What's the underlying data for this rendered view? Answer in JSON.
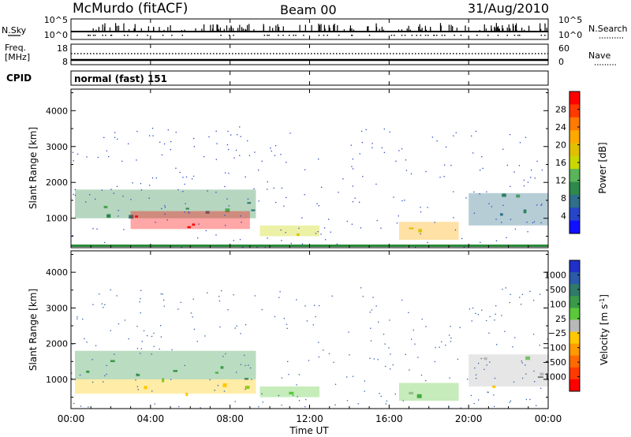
{
  "header": {
    "station": "McMurdo (fitACF)",
    "beam": "Beam 00",
    "date": "31/Aug/2010"
  },
  "noise_panel": {
    "left_label": "N.Sky",
    "right_label": "N.Search",
    "left_ticks": [
      "10^5",
      "10^0"
    ],
    "right_ticks": [
      "10^5",
      "10^0"
    ]
  },
  "freq_panel": {
    "label_line1": "Freq.",
    "label_line2": "[MHz]",
    "left_ticks": [
      "18",
      "8"
    ],
    "right_label": "Nave",
    "right_ticks": [
      "60",
      "0"
    ]
  },
  "cpid_panel": {
    "label": "CPID",
    "text": "normal (fast) 151"
  },
  "power_panel": {
    "ylabel": "Slant Range [km]",
    "y_ticks": [
      "4000",
      "3000",
      "2000",
      "1000"
    ],
    "colorbar_label": "Power [dB]",
    "colorbar_ticks": [
      "28",
      "24",
      "20",
      "16",
      "12",
      "8",
      "4"
    ],
    "colorbar_colors": [
      "#ff0000",
      "#ff3a00",
      "#ff7a00",
      "#ffa800",
      "#e0c000",
      "#c8d800",
      "#5ab45a",
      "#2e8a4a",
      "#2f6f8a",
      "#2645c8",
      "#1010ff"
    ]
  },
  "velocity_panel": {
    "ylabel": "Slant Range [km]",
    "y_ticks": [
      "4000",
      "3000",
      "2000",
      "1000"
    ],
    "colorbar_label": "Velocity [m s",
    "colorbar_label_sup": "-1",
    "colorbar_label_end": "]",
    "colorbar_ticks": [
      "1000",
      "500",
      "100",
      "25",
      "−25",
      "−100",
      "−500",
      "−1000"
    ],
    "colorbar_colors": [
      "#2030c8",
      "#2a5aa8",
      "#2f7a6a",
      "#3a9a4a",
      "#5ac83a",
      "#b8b8b8",
      "#ffc800",
      "#ff9a00",
      "#ff6a00",
      "#ff3a00",
      "#ff0000"
    ]
  },
  "x_axis": {
    "label": "Time UT",
    "ticks": [
      "00:00",
      "04:00",
      "08:00",
      "12:00",
      "16:00",
      "20:00",
      "00:00"
    ]
  },
  "chart_data": {
    "type": "heatmap",
    "title": "McMurdo (fitACF)",
    "xlabel": "Time UT",
    "ylabel": "Slant Range [km]",
    "xlim": [
      "00:00",
      "24:00"
    ],
    "ylim": [
      180,
      4600
    ],
    "panels": [
      {
        "name": "Power",
        "unit": "dB",
        "scale": [
          0,
          30
        ],
        "regions": [
          {
            "t_start": 0.2,
            "t_end": 9.3,
            "r_min": 1000,
            "r_max": 1800,
            "value": 10
          },
          {
            "t_start": 3.0,
            "t_end": 9.0,
            "r_min": 700,
            "r_max": 1200,
            "value": 28
          },
          {
            "t_start": 9.5,
            "t_end": 12.5,
            "r_min": 500,
            "r_max": 800,
            "value": 14
          },
          {
            "t_start": 16.5,
            "t_end": 19.5,
            "r_min": 400,
            "r_max": 900,
            "value": 20
          },
          {
            "t_start": 20.0,
            "t_end": 24.0,
            "r_min": 800,
            "r_max": 1700,
            "value": 8
          }
        ]
      },
      {
        "name": "Velocity",
        "unit": "m s^-1",
        "scale": [
          -1000,
          1000
        ],
        "regions": [
          {
            "t_start": 0.2,
            "t_end": 9.3,
            "r_min": 1000,
            "r_max": 1800,
            "value": 300
          },
          {
            "t_start": 0.2,
            "t_end": 9.3,
            "r_min": 600,
            "r_max": 1000,
            "value": -100
          },
          {
            "t_start": 9.5,
            "t_end": 12.5,
            "r_min": 500,
            "r_max": 800,
            "value": 100
          },
          {
            "t_start": 16.5,
            "t_end": 19.5,
            "r_min": 400,
            "r_max": 900,
            "value": 200
          },
          {
            "t_start": 20.0,
            "t_end": 24.0,
            "r_min": 800,
            "r_max": 1700,
            "value": 50
          }
        ]
      }
    ]
  }
}
